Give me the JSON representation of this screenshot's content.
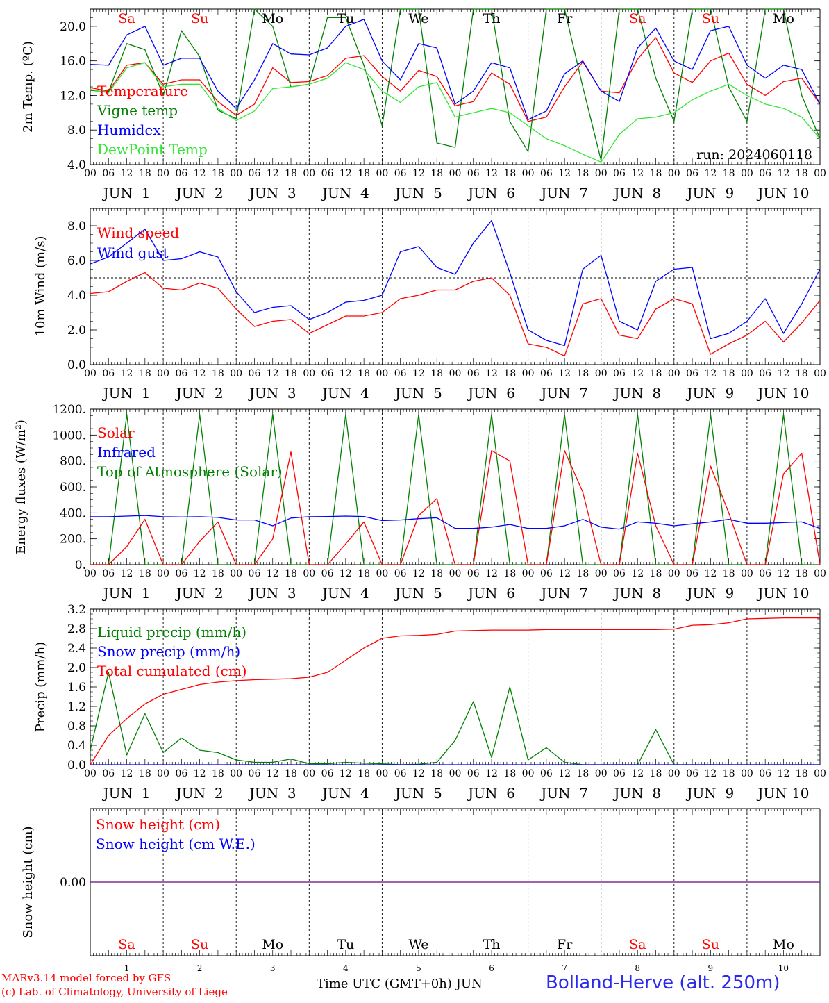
{
  "meta": {
    "run_label": "run: 2024060118",
    "model": "MARv3.14 model forced by GFS",
    "copyright": "(c) Lab. of Climatology, University of Liege",
    "time_label": "Time UTC (GMT+0h)",
    "month_label": "JUN",
    "station": "Bolland-Herve (alt. 250m)"
  },
  "colors": {
    "red": "#ff0000",
    "green": "#008000",
    "blue": "#0000ff",
    "light_green": "#32e632",
    "purple": "#7a2a8a"
  },
  "days": [
    {
      "abbr": "Sa",
      "color": "#ff0000",
      "label": "JUN  1",
      "num": "1"
    },
    {
      "abbr": "Su",
      "color": "#ff0000",
      "label": "JUN  2",
      "num": "2"
    },
    {
      "abbr": "Mo",
      "color": "#000000",
      "label": "JUN  3",
      "num": "3"
    },
    {
      "abbr": "Tu",
      "color": "#000000",
      "label": "JUN  4",
      "num": "4"
    },
    {
      "abbr": "We",
      "color": "#000000",
      "label": "JUN  5",
      "num": "5"
    },
    {
      "abbr": "Th",
      "color": "#000000",
      "label": "JUN  6",
      "num": "6"
    },
    {
      "abbr": "Fr",
      "color": "#000000",
      "label": "JUN  7",
      "num": "7"
    },
    {
      "abbr": "Sa",
      "color": "#ff0000",
      "label": "JUN  8",
      "num": "8"
    },
    {
      "abbr": "Su",
      "color": "#ff0000",
      "label": "JUN  9",
      "num": "9"
    },
    {
      "abbr": "Mo",
      "color": "#000000",
      "label": "JUN 10",
      "num": "10"
    }
  ],
  "hour_ticks": [
    "00",
    "06",
    "12",
    "18"
  ],
  "hour_end": "00",
  "chart_data": [
    {
      "id": "temp",
      "type": "line",
      "ylabel": "2m Temp. (ºC)",
      "ylim": [
        4,
        22
      ],
      "yticks": [
        4,
        8,
        12,
        16,
        20
      ],
      "ytick_labels": [
        "4.0",
        "8.0",
        "12.0",
        "16.0",
        "20.0"
      ],
      "x_unit": "hours since JUN 1 00 UTC",
      "x_step": 6,
      "series": [
        {
          "name": "Temperature",
          "color": "#ff0000",
          "values": [
            12.9,
            12.5,
            15.5,
            15.8,
            13.3,
            13.8,
            13.8,
            11.3,
            9.7,
            11.0,
            15.2,
            13.5,
            13.6,
            14.3,
            16.3,
            16.6,
            14.2,
            12.5,
            14.9,
            14.2,
            10.8,
            11.3,
            14.6,
            13.3,
            9.0,
            9.5,
            13.0,
            15.9,
            12.5,
            12.3,
            16.2,
            18.7,
            14.6,
            13.5,
            16.0,
            16.9,
            13.3,
            12.0,
            13.6,
            14.0,
            11.0
          ]
        },
        {
          "name": "Vigne temp",
          "color": "#008000",
          "values": [
            12.6,
            12.4,
            18.0,
            17.3,
            12.0,
            19.5,
            16.5,
            10.3,
            9.3,
            22.0,
            20.0,
            13.0,
            13.3,
            21.0,
            21.0,
            15.5,
            8.5,
            22.0,
            22.0,
            6.5,
            6.0,
            22.0,
            22.0,
            9.0,
            5.5,
            22.0,
            22.0,
            13.0,
            4.5,
            22.0,
            22.0,
            14.0,
            9.0,
            22.0,
            22.0,
            13.0,
            9.0,
            22.0,
            22.0,
            12.0,
            7.0
          ]
        },
        {
          "name": "Humidex",
          "color": "#0000ff",
          "values": [
            15.6,
            15.5,
            19.0,
            20.0,
            15.5,
            16.3,
            16.3,
            12.5,
            10.5,
            13.8,
            18.0,
            16.8,
            16.7,
            17.5,
            20.0,
            20.8,
            16.0,
            13.8,
            18.0,
            17.5,
            11.0,
            12.5,
            15.8,
            15.2,
            9.2,
            10.2,
            14.5,
            16.0,
            12.5,
            11.3,
            17.5,
            19.8,
            16.0,
            15.0,
            19.5,
            20.0,
            15.5,
            14.0,
            15.5,
            15.0,
            11.0
          ]
        },
        {
          "name": "DewPoint Temp",
          "color": "#32e632",
          "values": [
            12.7,
            12.3,
            15.2,
            15.8,
            13.0,
            13.3,
            13.3,
            10.5,
            9.1,
            10.2,
            12.8,
            13.0,
            13.3,
            14.0,
            15.8,
            15.0,
            12.5,
            11.2,
            13.0,
            13.5,
            9.5,
            10.0,
            10.5,
            10.0,
            8.5,
            7.0,
            6.2,
            5.2,
            4.3,
            7.5,
            9.3,
            9.5,
            10.0,
            11.5,
            12.5,
            13.3,
            12.0,
            11.0,
            10.5,
            9.5,
            7.0
          ]
        }
      ],
      "legend": [
        "Temperature",
        "Vigne temp",
        "Humidex",
        "DewPoint Temp"
      ]
    },
    {
      "id": "wind",
      "type": "line",
      "ylabel": "10m Wind (m/s)",
      "ylim": [
        0,
        9
      ],
      "yticks": [
        0,
        2,
        4,
        6,
        8
      ],
      "ytick_labels": [
        "0.0",
        "2.0",
        "4.0",
        "6.0",
        "8.0"
      ],
      "x_unit": "hours since JUN 1 00 UTC",
      "x_step": 6,
      "reference_line": 5,
      "series": [
        {
          "name": "Wind speed",
          "color": "#ff0000",
          "values": [
            4.1,
            4.2,
            4.8,
            5.3,
            4.4,
            4.3,
            4.7,
            4.4,
            3.2,
            2.2,
            2.5,
            2.6,
            1.8,
            2.3,
            2.8,
            2.8,
            3.0,
            3.8,
            4.0,
            4.3,
            4.3,
            4.8,
            5.0,
            4.0,
            1.2,
            1.0,
            0.5,
            3.5,
            3.8,
            1.7,
            1.5,
            3.2,
            3.8,
            3.5,
            0.6,
            1.2,
            1.7,
            2.5,
            1.3,
            2.4,
            3.7
          ]
        },
        {
          "name": "Wind gust",
          "color": "#0000ff",
          "values": [
            5.8,
            6.2,
            7.0,
            7.8,
            6.0,
            6.1,
            6.5,
            6.2,
            4.2,
            3.0,
            3.3,
            3.4,
            2.6,
            3.0,
            3.6,
            3.7,
            4.0,
            6.5,
            6.8,
            5.6,
            5.2,
            7.0,
            8.3,
            5.3,
            2.0,
            1.4,
            1.1,
            5.5,
            6.3,
            2.5,
            2.0,
            4.8,
            5.5,
            5.6,
            1.5,
            1.8,
            2.5,
            3.8,
            1.8,
            3.5,
            5.5
          ]
        }
      ],
      "legend": [
        "Wind speed",
        "Wind gust"
      ]
    },
    {
      "id": "energy",
      "type": "line",
      "ylabel": "Energy fluxes (W/m²)",
      "ylim": [
        0,
        1200
      ],
      "yticks": [
        0,
        200,
        400,
        600,
        800,
        1000,
        1200
      ],
      "ytick_labels": [
        "0.",
        "200.",
        "400.",
        "600.",
        "800.",
        "1000.",
        "1200."
      ],
      "x_unit": "hours since JUN 1 00 UTC",
      "x_step": 6,
      "series": [
        {
          "name": "Solar",
          "color": "#ff0000",
          "values": [
            0,
            0,
            140,
            350,
            0,
            0,
            180,
            330,
            0,
            0,
            200,
            870,
            0,
            0,
            160,
            330,
            0,
            0,
            380,
            510,
            0,
            0,
            880,
            800,
            0,
            0,
            880,
            560,
            0,
            0,
            860,
            300,
            0,
            0,
            760,
            400,
            0,
            0,
            700,
            860,
            0
          ]
        },
        {
          "name": "Infrared",
          "color": "#0000ff",
          "values": [
            370,
            370,
            375,
            380,
            370,
            368,
            370,
            365,
            345,
            345,
            300,
            360,
            370,
            372,
            375,
            372,
            340,
            345,
            355,
            362,
            280,
            280,
            290,
            310,
            280,
            280,
            300,
            350,
            290,
            275,
            330,
            320,
            300,
            315,
            330,
            350,
            320,
            320,
            325,
            330,
            280
          ]
        },
        {
          "name": "Top of Atmosphere (Solar)",
          "color": "#008000",
          "values": [
            0,
            0,
            1160,
            0,
            0,
            0,
            1160,
            0,
            0,
            0,
            1160,
            0,
            0,
            0,
            1160,
            0,
            0,
            0,
            1160,
            0,
            0,
            0,
            1160,
            0,
            0,
            0,
            1160,
            0,
            0,
            0,
            1160,
            0,
            0,
            0,
            1160,
            0,
            0,
            0,
            1160,
            0,
            0
          ]
        }
      ],
      "legend": [
        "Solar",
        "Infrared",
        "Top of Atmosphere (Solar)"
      ]
    },
    {
      "id": "precip",
      "type": "line",
      "ylabel": "Precip (mm/h)",
      "ylim": [
        0,
        3.2
      ],
      "yticks": [
        0,
        0.4,
        0.8,
        1.2,
        1.6,
        2.0,
        2.4,
        2.8,
        3.2
      ],
      "ytick_labels": [
        "0.0",
        "0.4",
        "0.8",
        "1.2",
        "1.6",
        "2.0",
        "2.4",
        "2.8",
        "3.2"
      ],
      "x_unit": "hours since JUN 1 00 UTC",
      "x_step": 6,
      "series": [
        {
          "name": "Liquid precip (mm/h)",
          "color": "#008000",
          "values": [
            0.3,
            1.9,
            0.2,
            1.05,
            0.25,
            0.55,
            0.3,
            0.25,
            0.1,
            0.05,
            0.05,
            0.12,
            0.02,
            0.02,
            0.05,
            0.03,
            0.02,
            0.0,
            0.01,
            0.05,
            0.5,
            1.3,
            0.15,
            1.6,
            0.1,
            0.35,
            0.05,
            0.0,
            0.0,
            0.0,
            0.0,
            0.72,
            0.0,
            0.0,
            0.0,
            0.0,
            0.0,
            0.0,
            0.0,
            0.0,
            0.0
          ]
        },
        {
          "name": "Snow precip (mm/h)",
          "color": "#0000ff",
          "values": [
            0,
            0,
            0,
            0,
            0,
            0,
            0,
            0,
            0,
            0,
            0,
            0,
            0,
            0,
            0,
            0,
            0,
            0,
            0,
            0,
            0,
            0,
            0,
            0,
            0,
            0,
            0,
            0,
            0,
            0,
            0,
            0,
            0,
            0,
            0,
            0,
            0,
            0,
            0,
            0,
            0
          ]
        },
        {
          "name": "Total cumulated (cm)",
          "color": "#ff0000",
          "values": [
            0.0,
            0.6,
            0.95,
            1.25,
            1.45,
            1.55,
            1.65,
            1.7,
            1.73,
            1.75,
            1.76,
            1.77,
            1.8,
            1.9,
            2.15,
            2.4,
            2.6,
            2.65,
            2.66,
            2.68,
            2.75,
            2.76,
            2.77,
            2.77,
            2.77,
            2.78,
            2.78,
            2.78,
            2.78,
            2.78,
            2.78,
            2.78,
            2.79,
            2.87,
            2.88,
            2.92,
            3.0,
            3.01,
            3.02,
            3.02,
            3.02
          ]
        }
      ],
      "legend": [
        "Liquid precip (mm/h)",
        "Snow precip (mm/h)",
        "Total cumulated (cm)"
      ]
    },
    {
      "id": "snow",
      "type": "line",
      "ylabel": "Snow height (cm)",
      "ylim": [
        -1,
        1
      ],
      "yticks": [
        0
      ],
      "ytick_labels": [
        "0.00"
      ],
      "x_unit": "hours since JUN 1 00 UTC",
      "x_step": 6,
      "series": [
        {
          "name": "Snow height (cm)",
          "color": "#ff0000",
          "values": [
            0,
            0
          ]
        },
        {
          "name": "Snow height (cm W.E.)",
          "color": "#0000ff",
          "values": [
            0,
            0
          ]
        }
      ],
      "legend": [
        "Snow height (cm)",
        "Snow height (cm W.E.)"
      ]
    }
  ]
}
